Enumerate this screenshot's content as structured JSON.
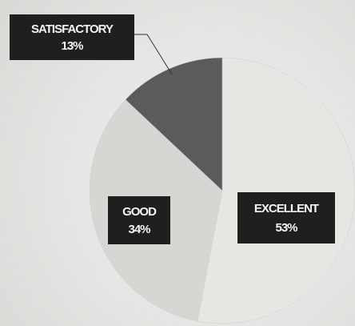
{
  "chart_data": {
    "type": "pie",
    "categories": [
      "EXCELLENT",
      "GOOD",
      "SATISFACTORY"
    ],
    "values": [
      53,
      34,
      13
    ],
    "value_labels": [
      "53%",
      "34%",
      "13%"
    ],
    "colors": [
      "#e6e6e3",
      "#d6d6d2",
      "#5b5b59"
    ]
  }
}
